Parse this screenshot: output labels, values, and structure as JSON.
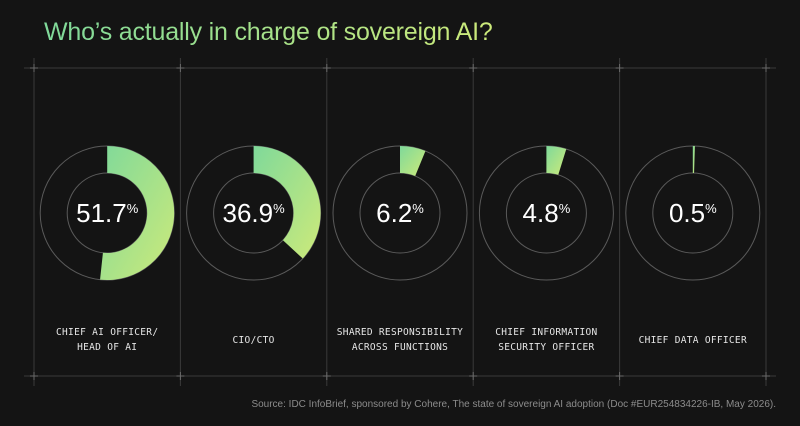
{
  "title": "Who’s actually in charge of sovereign AI?",
  "source": "Source: IDC InfoBrief, sponsored by Cohere, The state of sovereign AI adoption (Doc #EUR254834226-IB, May 2026).",
  "colors": {
    "background": "#141414",
    "accent_start": "#7fd99a",
    "accent_end": "#cdea7a",
    "ring": "#5a5a5a",
    "text": "#ffffff"
  },
  "chart_data": {
    "type": "pie",
    "unit": "%",
    "categories": [
      "CHIEF AI OFFICER/ HEAD OF AI",
      "CIO/CTO",
      "SHARED RESPONSIBILITY ACROSS FUNCTIONS",
      "CHIEF INFORMATION SECURITY OFFICER",
      "CHIEF DATA OFFICER"
    ],
    "items": [
      {
        "value": 51.7,
        "value_label": "51.7",
        "label_lines": [
          "CHIEF AI OFFICER/",
          "HEAD OF AI"
        ]
      },
      {
        "value": 36.9,
        "value_label": "36.9",
        "label_lines": [
          "CIO/CTO"
        ]
      },
      {
        "value": 6.2,
        "value_label": "6.2",
        "label_lines": [
          "SHARED RESPONSIBILITY",
          "ACROSS FUNCTIONS"
        ]
      },
      {
        "value": 4.8,
        "value_label": "4.8",
        "label_lines": [
          "CHIEF INFORMATION",
          "SECURITY OFFICER"
        ]
      },
      {
        "value": 0.5,
        "value_label": "0.5",
        "label_lines": [
          "CHIEF DATA OFFICER"
        ]
      }
    ],
    "max": 100
  }
}
